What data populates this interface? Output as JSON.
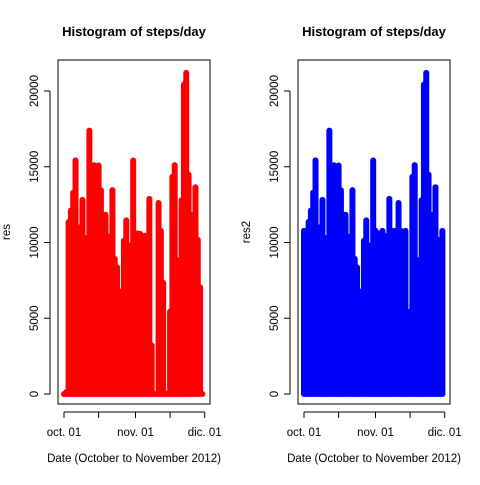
{
  "chart_data": [
    {
      "type": "bar",
      "title": "Histogram of steps/day",
      "xlabel": "Date (October to November 2012)",
      "ylabel": "res",
      "color": "#FF0000",
      "ylim": [
        0,
        21500
      ],
      "yticks": [
        0,
        5000,
        10000,
        15000,
        20000
      ],
      "xticks": [
        "oct. 01",
        "nov. 01",
        "dic. 01"
      ],
      "x": [
        "2012-10-01",
        "2012-10-02",
        "2012-10-03",
        "2012-10-04",
        "2012-10-05",
        "2012-10-06",
        "2012-10-07",
        "2012-10-08",
        "2012-10-09",
        "2012-10-10",
        "2012-10-11",
        "2012-10-12",
        "2012-10-13",
        "2012-10-14",
        "2012-10-15",
        "2012-10-16",
        "2012-10-17",
        "2012-10-18",
        "2012-10-19",
        "2012-10-20",
        "2012-10-21",
        "2012-10-22",
        "2012-10-23",
        "2012-10-24",
        "2012-10-25",
        "2012-10-26",
        "2012-10-27",
        "2012-10-28",
        "2012-10-29",
        "2012-10-30",
        "2012-10-31",
        "2012-11-01",
        "2012-11-02",
        "2012-11-03",
        "2012-11-04",
        "2012-11-05",
        "2012-11-06",
        "2012-11-07",
        "2012-11-08",
        "2012-11-09",
        "2012-11-10",
        "2012-11-11",
        "2012-11-12",
        "2012-11-13",
        "2012-11-14",
        "2012-11-15",
        "2012-11-16",
        "2012-11-17",
        "2012-11-18",
        "2012-11-19",
        "2012-11-20",
        "2012-11-21",
        "2012-11-22",
        "2012-11-23",
        "2012-11-24",
        "2012-11-25",
        "2012-11-26",
        "2012-11-27",
        "2012-11-28",
        "2012-11-29",
        "2012-11-30"
      ],
      "values": [
        0,
        126,
        11352,
        12116,
        13294,
        15420,
        11015,
        0,
        12811,
        9900,
        10304,
        17382,
        12426,
        15098,
        10139,
        15084,
        13452,
        10056,
        11829,
        10395,
        8821,
        13460,
        8918,
        8355,
        2492,
        6778,
        10119,
        11458,
        5018,
        9819,
        15414,
        0,
        10600,
        10571,
        0,
        10439,
        8334,
        12883,
        3219,
        0,
        0,
        12608,
        10765,
        7336,
        0,
        41,
        5441,
        14339,
        15110,
        8841,
        4472,
        12787,
        20427,
        21194,
        14478,
        11834,
        11162,
        13646,
        10183,
        7047,
        0
      ]
    },
    {
      "type": "bar",
      "title": "Histogram of steps/day",
      "xlabel": "Date (October to November 2012)",
      "ylabel": "res2",
      "color": "#0000FF",
      "ylim": [
        0,
        21500
      ],
      "yticks": [
        0,
        5000,
        10000,
        15000,
        20000
      ],
      "xticks": [
        "oct. 01",
        "nov. 01",
        "dic. 01"
      ],
      "x": [
        "2012-10-01",
        "2012-10-02",
        "2012-10-03",
        "2012-10-04",
        "2012-10-05",
        "2012-10-06",
        "2012-10-07",
        "2012-10-08",
        "2012-10-09",
        "2012-10-10",
        "2012-10-11",
        "2012-10-12",
        "2012-10-13",
        "2012-10-14",
        "2012-10-15",
        "2012-10-16",
        "2012-10-17",
        "2012-10-18",
        "2012-10-19",
        "2012-10-20",
        "2012-10-21",
        "2012-10-22",
        "2012-10-23",
        "2012-10-24",
        "2012-10-25",
        "2012-10-26",
        "2012-10-27",
        "2012-10-28",
        "2012-10-29",
        "2012-10-30",
        "2012-10-31",
        "2012-11-01",
        "2012-11-02",
        "2012-11-03",
        "2012-11-04",
        "2012-11-05",
        "2012-11-06",
        "2012-11-07",
        "2012-11-08",
        "2012-11-09",
        "2012-11-10",
        "2012-11-11",
        "2012-11-12",
        "2012-11-13",
        "2012-11-14",
        "2012-11-15",
        "2012-11-16",
        "2012-11-17",
        "2012-11-18",
        "2012-11-19",
        "2012-11-20",
        "2012-11-21",
        "2012-11-22",
        "2012-11-23",
        "2012-11-24",
        "2012-11-25",
        "2012-11-26",
        "2012-11-27",
        "2012-11-28",
        "2012-11-29",
        "2012-11-30"
      ],
      "values": [
        10766,
        126,
        11352,
        12116,
        13294,
        15420,
        11015,
        10766,
        12811,
        9900,
        10304,
        17382,
        12426,
        15098,
        10139,
        15084,
        13452,
        10056,
        11829,
        10395,
        8821,
        13460,
        8918,
        8355,
        2492,
        6778,
        10119,
        11458,
        5018,
        9819,
        15414,
        10766,
        10600,
        10571,
        10766,
        10439,
        8334,
        12883,
        3219,
        10766,
        10766,
        12608,
        10765,
        7336,
        10766,
        41,
        5441,
        14339,
        15110,
        8841,
        4472,
        12787,
        20427,
        21194,
        14478,
        11834,
        11162,
        13646,
        10183,
        7047,
        10766
      ]
    }
  ]
}
